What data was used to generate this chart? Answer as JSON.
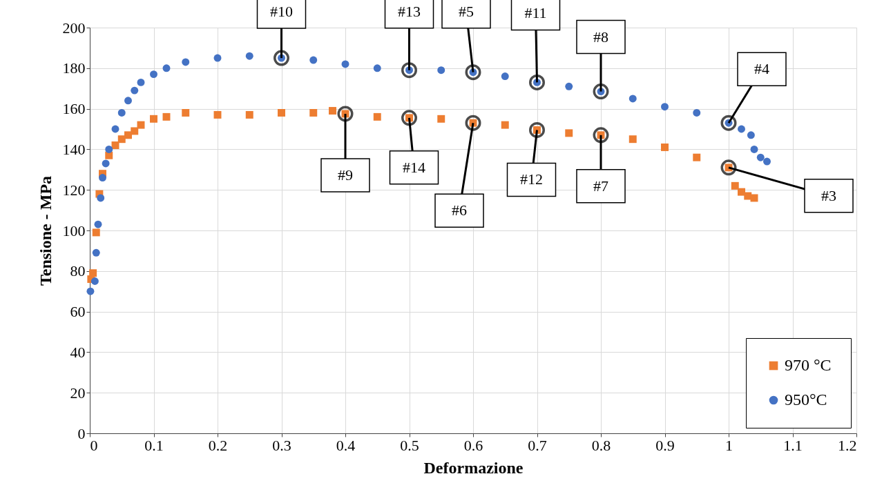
{
  "chart_data": {
    "type": "scatter",
    "xlabel": "Deformazione",
    "ylabel": "Tensione - MPa",
    "xlim": [
      0,
      1.2
    ],
    "xticks": [
      0,
      0.1,
      0.2,
      0.3,
      0.4,
      0.5,
      0.6,
      0.7,
      0.8,
      0.9,
      1,
      1.1,
      1.2
    ],
    "ylim": [
      0,
      200
    ],
    "yticks": [
      0,
      20,
      40,
      60,
      80,
      100,
      120,
      140,
      160,
      180,
      200
    ],
    "grid": true,
    "legend": "bottom right",
    "series": [
      {
        "name": "970 °C",
        "color": "#ed7d31",
        "marker": "square",
        "x": [
          0.002,
          0.005,
          0.01,
          0.015,
          0.02,
          0.03,
          0.04,
          0.05,
          0.06,
          0.07,
          0.08,
          0.1,
          0.12,
          0.15,
          0.2,
          0.25,
          0.3,
          0.35,
          0.38,
          0.4,
          0.45,
          0.5,
          0.55,
          0.6,
          0.65,
          0.7,
          0.75,
          0.8,
          0.85,
          0.9,
          0.95,
          1.0,
          1.01,
          1.02,
          1.03,
          1.04
        ],
        "values": [
          76,
          79,
          99,
          118,
          128,
          137,
          142,
          145,
          147,
          149,
          152,
          155,
          156,
          158,
          157,
          157,
          158,
          158,
          159,
          157.5,
          156,
          155.5,
          155,
          153,
          152,
          149.5,
          148,
          147,
          145,
          141,
          136,
          131,
          122,
          119,
          117,
          116
        ]
      },
      {
        "name": "950°C",
        "color": "#4472c4",
        "marker": "circle",
        "x": [
          0.001,
          0.008,
          0.01,
          0.013,
          0.017,
          0.02,
          0.025,
          0.03,
          0.04,
          0.05,
          0.06,
          0.07,
          0.08,
          0.1,
          0.12,
          0.15,
          0.2,
          0.25,
          0.3,
          0.35,
          0.4,
          0.45,
          0.5,
          0.55,
          0.6,
          0.65,
          0.7,
          0.75,
          0.8,
          0.85,
          0.9,
          0.95,
          1.0,
          1.02,
          1.035,
          1.04,
          1.05,
          1.06
        ],
        "values": [
          70,
          75,
          89,
          103,
          116,
          126,
          133,
          140,
          150,
          158,
          164,
          169,
          173,
          177,
          180,
          183,
          185,
          186,
          185,
          184,
          182,
          180,
          179,
          179,
          178,
          176,
          173,
          171,
          168.5,
          165,
          161,
          158,
          153,
          150,
          147,
          140,
          136,
          134
        ]
      }
    ],
    "annotations": [
      {
        "text": "#10",
        "x": 0.3,
        "y": 185
      },
      {
        "text": "#13",
        "x": 0.5,
        "y": 179
      },
      {
        "text": "#5",
        "x": 0.6,
        "y": 178
      },
      {
        "text": "#11",
        "x": 0.7,
        "y": 173
      },
      {
        "text": "#8",
        "x": 0.8,
        "y": 168.5
      },
      {
        "text": "#4",
        "x": 1.0,
        "y": 153
      },
      {
        "text": "#9",
        "x": 0.4,
        "y": 157.5
      },
      {
        "text": "#14",
        "x": 0.5,
        "y": 155.5
      },
      {
        "text": "#6",
        "x": 0.6,
        "y": 153
      },
      {
        "text": "#12",
        "x": 0.7,
        "y": 149.5
      },
      {
        "text": "#7",
        "x": 0.8,
        "y": 147
      },
      {
        "text": "#3",
        "x": 1.0,
        "y": 131
      }
    ]
  }
}
